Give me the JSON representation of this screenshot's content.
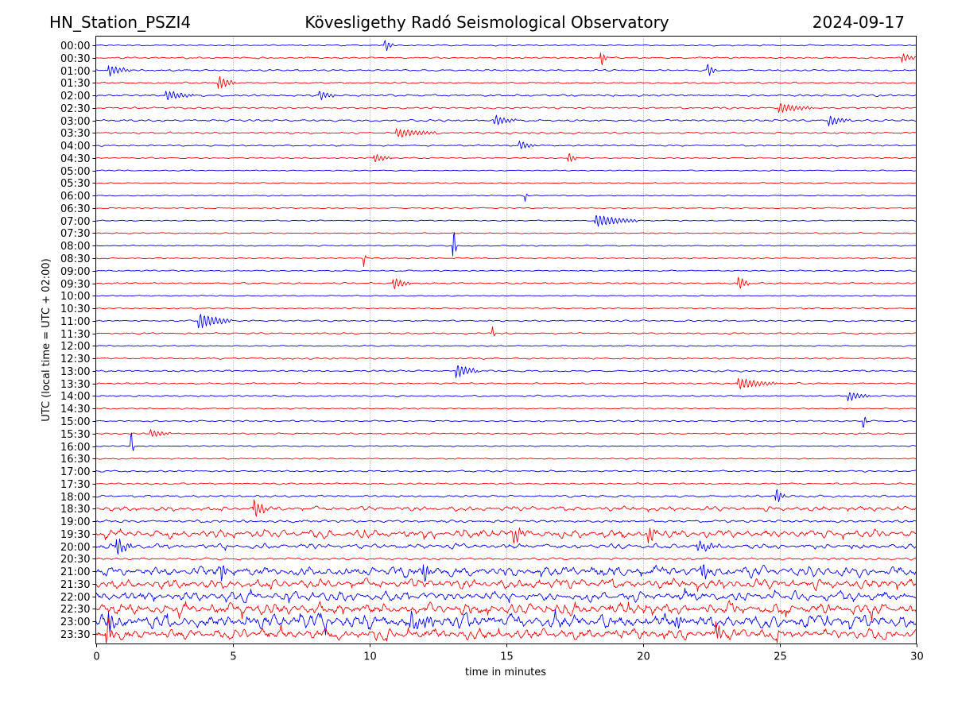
{
  "header": {
    "station": "HN_Station_PSZI4",
    "observatory": "Kövesligethy Radó Seismological Observatory",
    "date": "2024-09-17"
  },
  "chart_data": {
    "type": "line",
    "title": "Kövesligethy Radó Seismological Observatory",
    "subtitle_left": "HN_Station_PSZI4",
    "subtitle_right": "2024-09-17",
    "xlabel": "time in minutes",
    "ylabel": "UTC (local time = UTC + 02:00)",
    "xlim": [
      0,
      30
    ],
    "xticks": [
      "0",
      "5",
      "10",
      "15",
      "20",
      "25",
      "30"
    ],
    "grid": "vertical dotted lines at 5-minute intervals",
    "colors": {
      "even_rows": "#0000ff",
      "odd_rows": "#ff0000",
      "grid": "#808080",
      "frame": "#000000"
    },
    "rows": [
      {
        "label": "00:00",
        "noise": 0.35
      },
      {
        "label": "00:30",
        "noise": 0.45
      },
      {
        "label": "01:00",
        "noise": 0.45
      },
      {
        "label": "01:30",
        "noise": 0.4
      },
      {
        "label": "02:00",
        "noise": 0.55
      },
      {
        "label": "02:30",
        "noise": 0.45
      },
      {
        "label": "03:00",
        "noise": 0.55
      },
      {
        "label": "03:30",
        "noise": 0.5
      },
      {
        "label": "04:00",
        "noise": 0.4
      },
      {
        "label": "04:30",
        "noise": 0.35
      },
      {
        "label": "05:00",
        "noise": 0.3
      },
      {
        "label": "05:30",
        "noise": 0.3
      },
      {
        "label": "06:00",
        "noise": 0.3
      },
      {
        "label": "06:30",
        "noise": 0.3
      },
      {
        "label": "07:00",
        "noise": 0.3
      },
      {
        "label": "07:30",
        "noise": 0.3
      },
      {
        "label": "08:00",
        "noise": 0.3
      },
      {
        "label": "08:30",
        "noise": 0.35
      },
      {
        "label": "09:00",
        "noise": 0.35
      },
      {
        "label": "09:30",
        "noise": 0.45
      },
      {
        "label": "10:00",
        "noise": 0.3
      },
      {
        "label": "10:30",
        "noise": 0.35
      },
      {
        "label": "11:00",
        "noise": 0.4
      },
      {
        "label": "11:30",
        "noise": 0.4
      },
      {
        "label": "12:00",
        "noise": 0.35
      },
      {
        "label": "12:30",
        "noise": 0.45
      },
      {
        "label": "13:00",
        "noise": 0.5
      },
      {
        "label": "13:30",
        "noise": 0.4
      },
      {
        "label": "14:00",
        "noise": 0.45
      },
      {
        "label": "14:30",
        "noise": 0.35
      },
      {
        "label": "15:00",
        "noise": 0.4
      },
      {
        "label": "15:30",
        "noise": 0.4
      },
      {
        "label": "16:00",
        "noise": 0.35
      },
      {
        "label": "16:30",
        "noise": 0.35
      },
      {
        "label": "17:00",
        "noise": 0.45
      },
      {
        "label": "17:30",
        "noise": 0.45
      },
      {
        "label": "18:00",
        "noise": 0.6
      },
      {
        "label": "18:30",
        "noise": 1.0
      },
      {
        "label": "19:00",
        "noise": 0.7
      },
      {
        "label": "19:30",
        "noise": 1.8
      },
      {
        "label": "20:00",
        "noise": 1.1
      },
      {
        "label": "20:30",
        "noise": 0.6
      },
      {
        "label": "21:00",
        "noise": 2.2
      },
      {
        "label": "21:30",
        "noise": 2.1
      },
      {
        "label": "22:00",
        "noise": 2.0
      },
      {
        "label": "22:30",
        "noise": 2.5
      },
      {
        "label": "23:00",
        "noise": 3.0
      },
      {
        "label": "23:30",
        "noise": 2.4
      }
    ],
    "events": [
      {
        "row": "00:00",
        "minute": 10.6,
        "duration": 0.3,
        "amp": 1.5
      },
      {
        "row": "00:30",
        "minute": 18.5,
        "duration": 0.2,
        "amp": 2.0
      },
      {
        "row": "00:30",
        "minute": 29.5,
        "duration": 0.5,
        "amp": 1.2
      },
      {
        "row": "01:00",
        "minute": 0.5,
        "duration": 0.8,
        "amp": 1.4
      },
      {
        "row": "01:00",
        "minute": 22.4,
        "duration": 0.3,
        "amp": 1.6
      },
      {
        "row": "01:30",
        "minute": 4.5,
        "duration": 0.6,
        "amp": 1.8
      },
      {
        "row": "02:00",
        "minute": 2.6,
        "duration": 1.0,
        "amp": 1.2
      },
      {
        "row": "02:00",
        "minute": 8.2,
        "duration": 0.6,
        "amp": 1.2
      },
      {
        "row": "02:30",
        "minute": 25.0,
        "duration": 1.2,
        "amp": 1.3
      },
      {
        "row": "03:00",
        "minute": 14.6,
        "duration": 0.8,
        "amp": 1.3
      },
      {
        "row": "03:00",
        "minute": 26.8,
        "duration": 0.8,
        "amp": 1.4
      },
      {
        "row": "03:30",
        "minute": 11.0,
        "duration": 1.5,
        "amp": 1.2
      },
      {
        "row": "04:00",
        "minute": 15.5,
        "duration": 0.6,
        "amp": 1.2
      },
      {
        "row": "04:30",
        "minute": 10.2,
        "duration": 0.6,
        "amp": 1.2
      },
      {
        "row": "04:30",
        "minute": 17.3,
        "duration": 0.3,
        "amp": 1.4
      },
      {
        "row": "06:00",
        "minute": 15.7,
        "duration": 0.1,
        "amp": 1.5
      },
      {
        "row": "07:00",
        "minute": 18.3,
        "duration": 1.5,
        "amp": 1.6
      },
      {
        "row": "08:00",
        "minute": 13.1,
        "duration": 0.1,
        "amp": 4.5
      },
      {
        "row": "08:30",
        "minute": 9.8,
        "duration": 0.1,
        "amp": 2.2
      },
      {
        "row": "09:30",
        "minute": 10.9,
        "duration": 0.6,
        "amp": 1.5
      },
      {
        "row": "09:30",
        "minute": 23.5,
        "duration": 0.4,
        "amp": 1.8
      },
      {
        "row": "11:00",
        "minute": 3.8,
        "duration": 1.2,
        "amp": 2.0
      },
      {
        "row": "11:30",
        "minute": 14.5,
        "duration": 0.1,
        "amp": 2.0
      },
      {
        "row": "13:00",
        "minute": 13.2,
        "duration": 0.8,
        "amp": 1.8
      },
      {
        "row": "13:30",
        "minute": 23.5,
        "duration": 1.4,
        "amp": 1.5
      },
      {
        "row": "14:00",
        "minute": 27.5,
        "duration": 0.8,
        "amp": 1.3
      },
      {
        "row": "15:00",
        "minute": 28.1,
        "duration": 0.1,
        "amp": 2.0
      },
      {
        "row": "15:30",
        "minute": 2.0,
        "duration": 0.8,
        "amp": 1.0
      },
      {
        "row": "16:00",
        "minute": 1.3,
        "duration": 0.1,
        "amp": 4.0
      },
      {
        "row": "18:00",
        "minute": 24.9,
        "duration": 0.3,
        "amp": 2.0
      },
      {
        "row": "18:30",
        "minute": 5.8,
        "duration": 0.5,
        "amp": 2.5
      },
      {
        "row": "19:30",
        "minute": 15.3,
        "duration": 0.6,
        "amp": 2.0
      },
      {
        "row": "19:30",
        "minute": 20.2,
        "duration": 0.3,
        "amp": 2.5
      },
      {
        "row": "20:00",
        "minute": 0.8,
        "duration": 0.5,
        "amp": 2.5
      },
      {
        "row": "20:00",
        "minute": 22.0,
        "duration": 1.0,
        "amp": 1.2
      },
      {
        "row": "21:00",
        "minute": 4.6,
        "duration": 0.2,
        "amp": 3.0
      },
      {
        "row": "21:00",
        "minute": 12.0,
        "duration": 0.3,
        "amp": 2.5
      },
      {
        "row": "21:00",
        "minute": 22.2,
        "duration": 0.2,
        "amp": 2.5
      },
      {
        "row": "23:00",
        "minute": 0.5,
        "duration": 0.4,
        "amp": 2.5
      },
      {
        "row": "23:00",
        "minute": 11.5,
        "duration": 1.0,
        "amp": 2.0
      },
      {
        "row": "23:00",
        "minute": 21.2,
        "duration": 0.4,
        "amp": 2.0
      },
      {
        "row": "23:30",
        "minute": 0.4,
        "duration": 0.3,
        "amp": 3.0
      },
      {
        "row": "23:30",
        "minute": 22.7,
        "duration": 0.3,
        "amp": 2.5
      }
    ]
  }
}
